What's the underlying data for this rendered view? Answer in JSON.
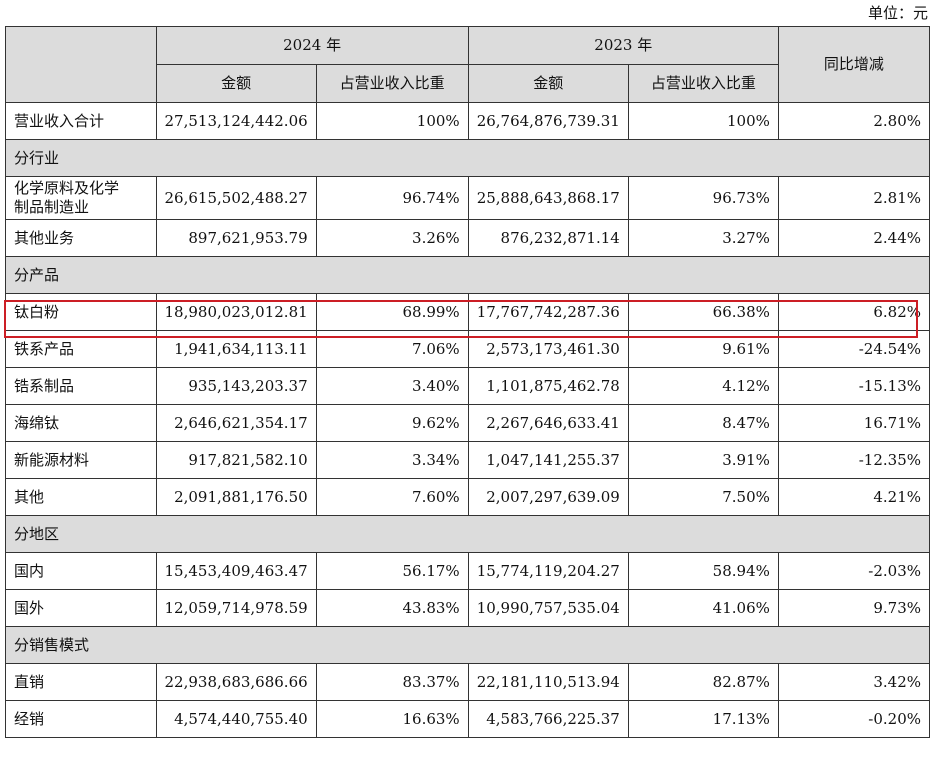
{
  "unit": "单位：元",
  "header": {
    "year_2024": "2024 年",
    "year_2023": "2023 年",
    "yoy": "同比增减",
    "amount_2024": "金额",
    "ratio_2024": "占营业收入比重",
    "amount_2023": "金额",
    "ratio_2023": "占营业收入比重"
  },
  "total": {
    "label": "营业收入合计",
    "amount_2024": "27,513,124,442.06",
    "ratio_2024": "100%",
    "amount_2023": "26,764,876,739.31",
    "ratio_2023": "100%",
    "yoy": "2.80%"
  },
  "sections": {
    "industry": {
      "title": "分行业",
      "rows": [
        {
          "label1": "化学原料及化学",
          "label2": "制品制造业",
          "amount_2024": "26,615,502,488.27",
          "ratio_2024": "96.74%",
          "amount_2023": "25,888,643,868.17",
          "ratio_2023": "96.73%",
          "yoy": "2.81%"
        },
        {
          "label": "其他业务",
          "amount_2024": "897,621,953.79",
          "ratio_2024": "3.26%",
          "amount_2023": "876,232,871.14",
          "ratio_2023": "3.27%",
          "yoy": "2.44%"
        }
      ]
    },
    "product": {
      "title": "分产品",
      "rows": [
        {
          "label": "钛白粉",
          "amount_2024": "18,980,023,012.81",
          "ratio_2024": "68.99%",
          "amount_2023": "17,767,742,287.36",
          "ratio_2023": "66.38%",
          "yoy": "6.82%"
        },
        {
          "label": "铁系产品",
          "amount_2024": "1,941,634,113.11",
          "ratio_2024": "7.06%",
          "amount_2023": "2,573,173,461.30",
          "ratio_2023": "9.61%",
          "yoy": "-24.54%"
        },
        {
          "label": "锆系制品",
          "amount_2024": "935,143,203.37",
          "ratio_2024": "3.40%",
          "amount_2023": "1,101,875,462.78",
          "ratio_2023": "4.12%",
          "yoy": "-15.13%"
        },
        {
          "label": "海绵钛",
          "amount_2024": "2,646,621,354.17",
          "ratio_2024": "9.62%",
          "amount_2023": "2,267,646,633.41",
          "ratio_2023": "8.47%",
          "yoy": "16.71%"
        },
        {
          "label": "新能源材料",
          "amount_2024": "917,821,582.10",
          "ratio_2024": "3.34%",
          "amount_2023": "1,047,141,255.37",
          "ratio_2023": "3.91%",
          "yoy": "-12.35%"
        },
        {
          "label": "其他",
          "amount_2024": "2,091,881,176.50",
          "ratio_2024": "7.60%",
          "amount_2023": "2,007,297,639.09",
          "ratio_2023": "7.50%",
          "yoy": "4.21%"
        }
      ]
    },
    "region": {
      "title": "分地区",
      "rows": [
        {
          "label": "国内",
          "amount_2024": "15,453,409,463.47",
          "ratio_2024": "56.17%",
          "amount_2023": "15,774,119,204.27",
          "ratio_2023": "58.94%",
          "yoy": "-2.03%"
        },
        {
          "label": "国外",
          "amount_2024": "12,059,714,978.59",
          "ratio_2024": "43.83%",
          "amount_2023": "10,990,757,535.04",
          "ratio_2023": "41.06%",
          "yoy": "9.73%"
        }
      ]
    },
    "sales": {
      "title": "分销售模式",
      "rows": [
        {
          "label": "直销",
          "amount_2024": "22,938,683,686.66",
          "ratio_2024": "83.37%",
          "amount_2023": "22,181,110,513.94",
          "ratio_2023": "82.87%",
          "yoy": "3.42%"
        },
        {
          "label": "经销",
          "amount_2024": "4,574,440,755.40",
          "ratio_2024": "16.63%",
          "amount_2023": "4,583,766,225.37",
          "ratio_2023": "17.13%",
          "yoy": "-0.20%"
        }
      ]
    }
  },
  "highlight_color": "#cc1e25"
}
